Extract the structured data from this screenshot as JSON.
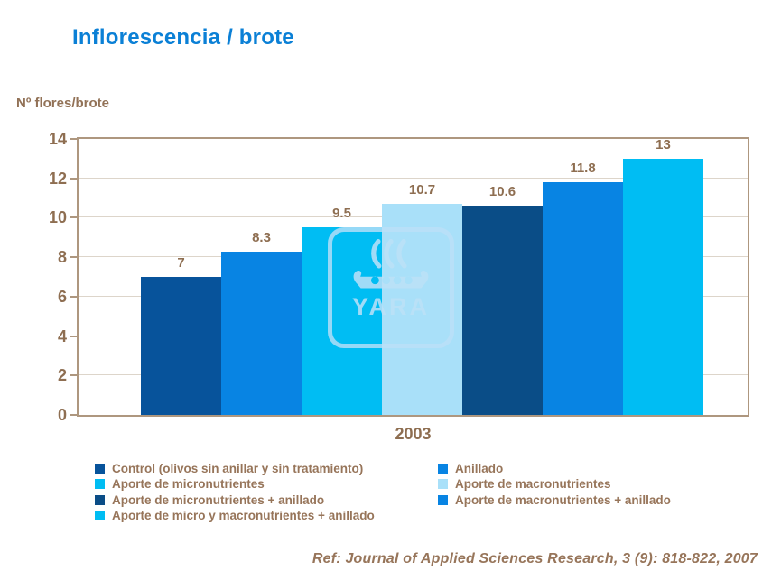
{
  "slide": {
    "title": "Inflorescencia / brote",
    "reference": "Ref: Journal of Applied Sciences  Research, 3 (9): 818-822, 2007",
    "watermark_text": "YARA"
  },
  "colors": {
    "title_blue": "#0B80D6",
    "text_brown": "#927257",
    "axis_border": "#AE977F",
    "gridline": "#DDD5CA",
    "watermark_blue": "#BEE0F7"
  },
  "chart_data": {
    "type": "bar",
    "title": "Inflorescencia / brote",
    "ylabel": "Nº flores/brote",
    "xlabel": "",
    "categories": [
      "2003"
    ],
    "ylim": [
      0,
      14
    ],
    "ytick_step": 2,
    "grid": true,
    "legend_position": "bottom",
    "series": [
      {
        "name": "Control (olivos sin anillar y sin tratamiento)",
        "value": 7,
        "label": "7",
        "color": "#07539B"
      },
      {
        "name": "Anillado",
        "value": 8.3,
        "label": "8.3",
        "color": "#0884E3"
      },
      {
        "name": "Aporte de micronutrientes",
        "value": 9.5,
        "label": "9.5",
        "color": "#00BDF3"
      },
      {
        "name": "Aporte de macronutrientes",
        "value": 10.7,
        "label": "10.7",
        "color": "#A9E0F9"
      },
      {
        "name": "Aporte de micronutrientes + anillado",
        "value": 10.6,
        "label": "10.6",
        "color": "#0A4D87"
      },
      {
        "name": "Aporte de macronutrientes + anillado",
        "value": 11.8,
        "label": "11.8",
        "color": "#0884E3"
      },
      {
        "name": "Aporte de micro y macronutrientes + anillado",
        "value": 13,
        "label": "13",
        "color": "#00BDF3"
      }
    ]
  }
}
